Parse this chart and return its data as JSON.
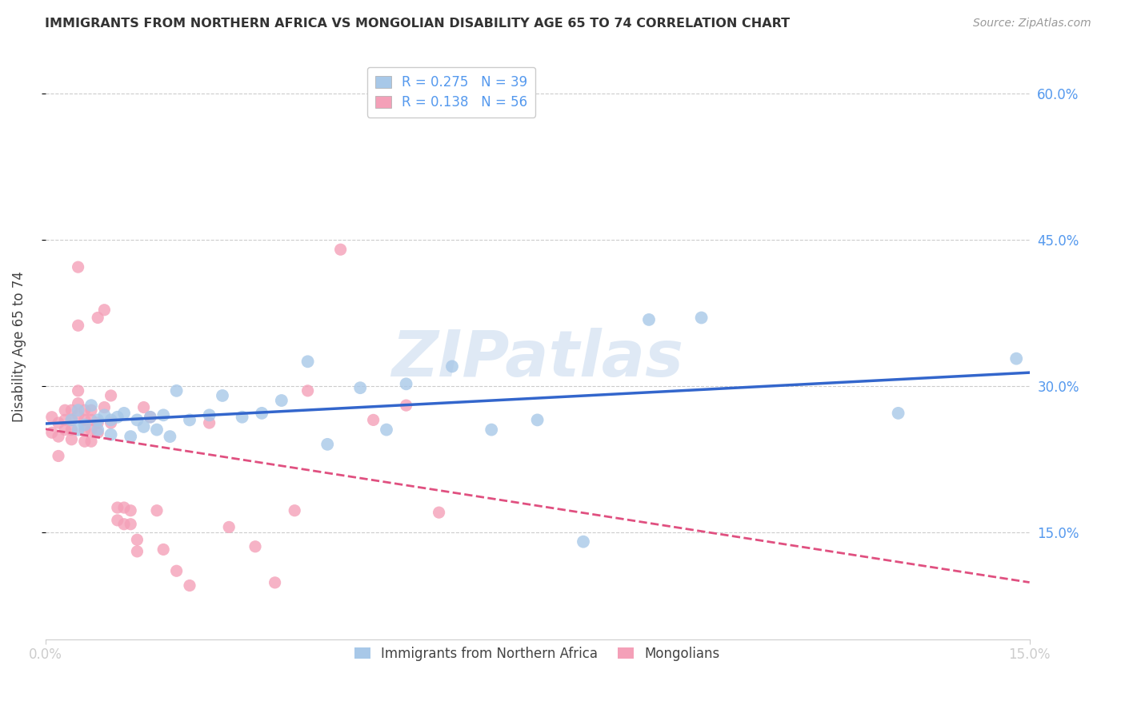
{
  "title": "IMMIGRANTS FROM NORTHERN AFRICA VS MONGOLIAN DISABILITY AGE 65 TO 74 CORRELATION CHART",
  "source": "Source: ZipAtlas.com",
  "ylabel": "Disability Age 65 to 74",
  "xlim": [
    0.0,
    0.15
  ],
  "ylim": [
    0.04,
    0.64
  ],
  "xtick_positions": [
    0.0,
    0.15
  ],
  "xtick_labels": [
    "0.0%",
    "15.0%"
  ],
  "ytick_positions": [
    0.15,
    0.3,
    0.45,
    0.6
  ],
  "ytick_labels": [
    "15.0%",
    "30.0%",
    "45.0%",
    "60.0%"
  ],
  "blue_R": 0.275,
  "blue_N": 39,
  "pink_R": 0.138,
  "pink_N": 56,
  "blue_color": "#a8c8e8",
  "pink_color": "#f4a0b8",
  "blue_line_color": "#3366cc",
  "pink_line_color": "#e05080",
  "legend_label_blue": "Immigrants from Northern Africa",
  "legend_label_pink": "Mongolians",
  "blue_x": [
    0.004,
    0.005,
    0.005,
    0.006,
    0.007,
    0.008,
    0.008,
    0.009,
    0.01,
    0.01,
    0.011,
    0.012,
    0.013,
    0.014,
    0.015,
    0.016,
    0.017,
    0.018,
    0.019,
    0.02,
    0.022,
    0.025,
    0.027,
    0.03,
    0.033,
    0.036,
    0.04,
    0.043,
    0.048,
    0.052,
    0.055,
    0.062,
    0.068,
    0.075,
    0.082,
    0.092,
    0.1,
    0.13,
    0.148
  ],
  "blue_y": [
    0.265,
    0.275,
    0.255,
    0.26,
    0.28,
    0.265,
    0.255,
    0.27,
    0.265,
    0.25,
    0.268,
    0.272,
    0.248,
    0.265,
    0.258,
    0.268,
    0.255,
    0.27,
    0.248,
    0.295,
    0.265,
    0.27,
    0.29,
    0.268,
    0.272,
    0.285,
    0.325,
    0.24,
    0.298,
    0.255,
    0.302,
    0.32,
    0.255,
    0.265,
    0.14,
    0.368,
    0.37,
    0.272,
    0.328
  ],
  "pink_x": [
    0.001,
    0.001,
    0.002,
    0.002,
    0.002,
    0.003,
    0.003,
    0.003,
    0.004,
    0.004,
    0.004,
    0.004,
    0.005,
    0.005,
    0.005,
    0.005,
    0.005,
    0.006,
    0.006,
    0.006,
    0.006,
    0.007,
    0.007,
    0.007,
    0.007,
    0.008,
    0.008,
    0.008,
    0.009,
    0.009,
    0.01,
    0.01,
    0.011,
    0.011,
    0.012,
    0.012,
    0.013,
    0.013,
    0.014,
    0.014,
    0.015,
    0.016,
    0.017,
    0.018,
    0.02,
    0.022,
    0.025,
    0.028,
    0.032,
    0.035,
    0.038,
    0.04,
    0.045,
    0.05,
    0.055,
    0.06
  ],
  "pink_y": [
    0.268,
    0.252,
    0.262,
    0.248,
    0.228,
    0.275,
    0.265,
    0.255,
    0.275,
    0.265,
    0.255,
    0.245,
    0.422,
    0.362,
    0.295,
    0.282,
    0.27,
    0.275,
    0.265,
    0.255,
    0.243,
    0.275,
    0.265,
    0.255,
    0.243,
    0.252,
    0.37,
    0.262,
    0.378,
    0.278,
    0.29,
    0.262,
    0.175,
    0.162,
    0.175,
    0.158,
    0.172,
    0.158,
    0.142,
    0.13,
    0.278,
    0.268,
    0.172,
    0.132,
    0.11,
    0.095,
    0.262,
    0.155,
    0.135,
    0.098,
    0.172,
    0.295,
    0.44,
    0.265,
    0.28,
    0.17
  ],
  "watermark": "ZIPatlas",
  "bg_color": "#ffffff",
  "grid_color": "#cccccc",
  "tick_label_color": "#5599ee",
  "title_color": "#333333",
  "source_color": "#999999"
}
